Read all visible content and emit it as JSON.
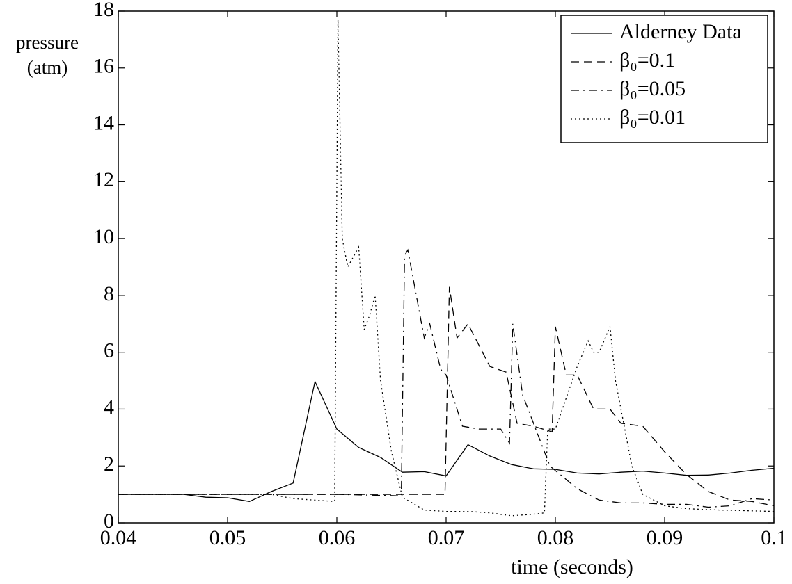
{
  "chart_data": {
    "type": "line",
    "xlabel": "time (seconds)",
    "ylabel": [
      "pressure",
      "(atm)"
    ],
    "xlim": [
      0.04,
      0.1
    ],
    "ylim": [
      0,
      18
    ],
    "xticks": [
      0.04,
      0.05,
      0.06,
      0.07,
      0.08,
      0.09,
      0.1
    ],
    "yticks": [
      0,
      2,
      4,
      6,
      8,
      10,
      12,
      14,
      16,
      18
    ],
    "grid": false,
    "legend": "upper right",
    "series": [
      {
        "name": "Alderney Data",
        "color": "#000000",
        "style": "solid",
        "x": [
          0.04,
          0.046,
          0.048,
          0.05,
          0.052,
          0.054,
          0.056,
          0.058,
          0.06,
          0.062,
          0.064,
          0.066,
          0.068,
          0.07,
          0.072,
          0.074,
          0.076,
          0.078,
          0.08,
          0.082,
          0.084,
          0.086,
          0.088,
          0.09,
          0.092,
          0.094,
          0.096,
          0.098,
          0.1
        ],
        "values": [
          1.0,
          1.0,
          0.9,
          0.88,
          0.75,
          1.1,
          1.4,
          4.97,
          3.3,
          2.65,
          2.3,
          1.78,
          1.8,
          1.65,
          2.75,
          2.35,
          2.05,
          1.9,
          1.88,
          1.75,
          1.72,
          1.78,
          1.82,
          1.75,
          1.67,
          1.68,
          1.75,
          1.85,
          1.92
        ]
      },
      {
        "name": "β₀=0.1",
        "color": "#000000",
        "style": "dashed",
        "x": [
          0.04,
          0.06,
          0.0699,
          0.0703,
          0.071,
          0.072,
          0.074,
          0.0755,
          0.0765,
          0.078,
          0.0797,
          0.08,
          0.081,
          0.082,
          0.0835,
          0.085,
          0.086,
          0.088,
          0.09,
          0.092,
          0.094,
          0.096,
          0.098,
          0.1
        ],
        "values": [
          1.0,
          1.0,
          1.0,
          8.3,
          6.5,
          7.0,
          5.5,
          5.3,
          3.5,
          3.4,
          3.2,
          6.9,
          5.2,
          5.2,
          4.0,
          4.0,
          3.5,
          3.4,
          2.5,
          1.7,
          1.1,
          0.8,
          0.75,
          0.6
        ]
      },
      {
        "name": "β₀=0.05",
        "color": "#000000",
        "style": "dashdot",
        "x": [
          0.04,
          0.06,
          0.0659,
          0.0662,
          0.0665,
          0.068,
          0.0685,
          0.0695,
          0.07,
          0.0715,
          0.073,
          0.075,
          0.0758,
          0.0761,
          0.077,
          0.078,
          0.0795,
          0.082,
          0.084,
          0.086,
          0.088,
          0.09,
          0.092,
          0.094,
          0.096,
          0.098,
          0.1
        ],
        "values": [
          1.0,
          1.0,
          0.95,
          9.4,
          9.6,
          6.5,
          7.0,
          5.4,
          5.2,
          3.4,
          3.3,
          3.3,
          2.8,
          7.0,
          4.5,
          3.5,
          2.0,
          1.2,
          0.8,
          0.7,
          0.7,
          0.65,
          0.65,
          0.55,
          0.6,
          0.85,
          0.8
        ]
      },
      {
        "name": "β₀=0.01",
        "color": "#000000",
        "style": "dotted",
        "x": [
          0.04,
          0.054,
          0.056,
          0.0598,
          0.0601,
          0.0605,
          0.061,
          0.062,
          0.0625,
          0.063,
          0.0635,
          0.064,
          0.065,
          0.066,
          0.068,
          0.07,
          0.072,
          0.074,
          0.076,
          0.078,
          0.079,
          0.0793,
          0.08,
          0.081,
          0.082,
          0.083,
          0.0835,
          0.084,
          0.085,
          0.0855,
          0.087,
          0.088,
          0.09,
          0.092,
          0.095,
          0.1
        ],
        "values": [
          1.0,
          1.0,
          0.85,
          0.75,
          17.7,
          10.0,
          9.0,
          9.7,
          6.8,
          7.3,
          8.0,
          5.0,
          2.5,
          0.9,
          0.45,
          0.4,
          0.4,
          0.35,
          0.25,
          0.3,
          0.35,
          3.3,
          3.3,
          4.4,
          5.5,
          6.4,
          6.0,
          6.0,
          6.9,
          5.0,
          2.0,
          1.0,
          0.6,
          0.5,
          0.45,
          0.4
        ]
      }
    ]
  }
}
